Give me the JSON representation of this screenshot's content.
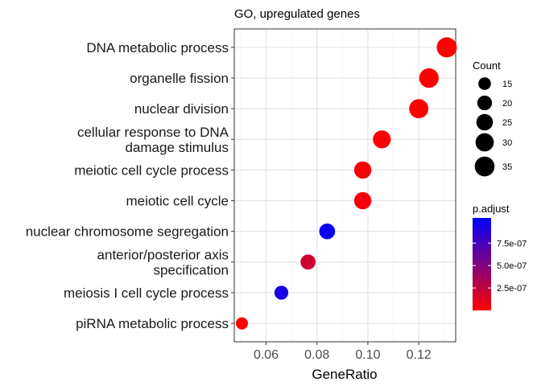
{
  "chart_data": {
    "type": "scatter",
    "title": "GO, upregulated genes",
    "xlabel": "GeneRatio",
    "ylabel": "",
    "xlim": [
      0.0475,
      0.1345
    ],
    "x_ticks": [
      0.06,
      0.08,
      0.1,
      0.12
    ],
    "x_tick_labels": [
      "0.06",
      "0.08",
      "0.10",
      "0.12"
    ],
    "grid": true,
    "points": [
      {
        "label": [
          "DNA metabolic process"
        ],
        "x": 0.131,
        "count": 36,
        "p_adjust": 2e-09
      },
      {
        "label": [
          "organelle fission"
        ],
        "x": 0.124,
        "count": 34,
        "p_adjust": 5e-09
      },
      {
        "label": [
          "nuclear division"
        ],
        "x": 0.12,
        "count": 33,
        "p_adjust": 8e-09
      },
      {
        "label": [
          "cellular response to DNA",
          "damage stimulus"
        ],
        "x": 0.1055,
        "count": 29,
        "p_adjust": 2e-08
      },
      {
        "label": [
          "meiotic cell cycle process"
        ],
        "x": 0.098,
        "count": 27,
        "p_adjust": 3e-08
      },
      {
        "label": [
          "meiotic cell cycle"
        ],
        "x": 0.098,
        "count": 27,
        "p_adjust": 4e-08
      },
      {
        "label": [
          "nuclear chromosome segregation"
        ],
        "x": 0.084,
        "count": 23,
        "p_adjust": 9.9e-07
      },
      {
        "label": [
          "anterior/posterior axis",
          "specification"
        ],
        "x": 0.0765,
        "count": 21,
        "p_adjust": 2e-07
      },
      {
        "label": [
          "meiosis I cell cycle process"
        ],
        "x": 0.066,
        "count": 18,
        "p_adjust": 9.3e-07
      },
      {
        "label": [
          "piRNA metabolic process"
        ],
        "x": 0.0505,
        "count": 14,
        "p_adjust": 1e-08
      }
    ],
    "size_legend": {
      "title": "Count",
      "values": [
        15,
        20,
        25,
        30,
        35
      ],
      "labels": [
        "15",
        "20",
        "25",
        "30",
        "35"
      ]
    },
    "color_legend": {
      "title": "p.adjust",
      "min": 0,
      "max": 1.03e-06,
      "low_color": "#ff0000",
      "high_color": "#0000ff",
      "ticks": [
        2.5e-07,
        5e-07,
        7.5e-07
      ],
      "tick_labels": [
        "2.5e-07",
        "5.0e-07",
        "7.5e-07"
      ]
    }
  }
}
